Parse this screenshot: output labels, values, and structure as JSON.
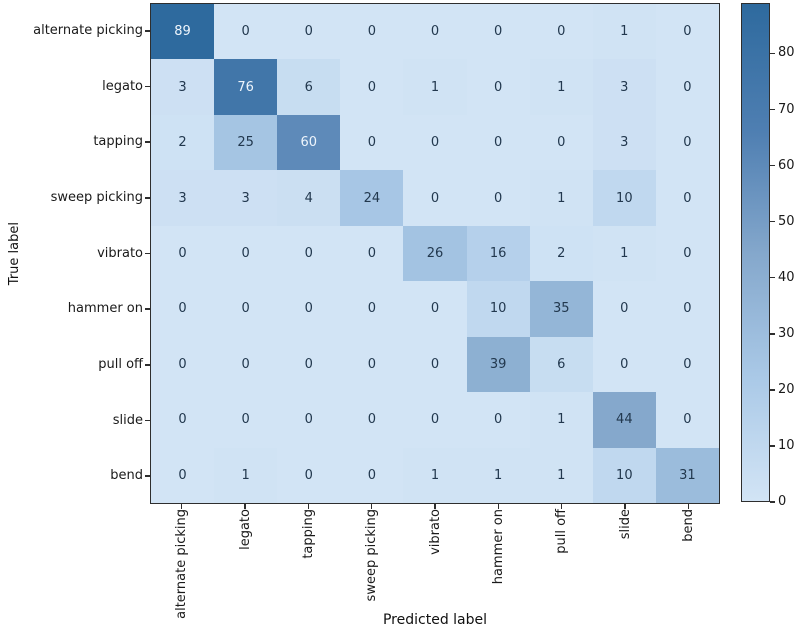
{
  "figure": {
    "background": "#ffffff",
    "spine_color": "#2e2e2e",
    "tick_text_color": "#1a1a1a"
  },
  "chart_data": {
    "type": "heatmap",
    "title": "",
    "xlabel": "Predicted label",
    "ylabel": "True label",
    "x_categories": [
      "alternate picking",
      "legato",
      "tapping",
      "sweep picking",
      "vibrato",
      "hammer on",
      "pull off",
      "slide",
      "bend"
    ],
    "y_categories": [
      "alternate picking",
      "legato",
      "tapping",
      "sweep picking",
      "vibrato",
      "hammer on",
      "pull off",
      "slide",
      "bend"
    ],
    "matrix": [
      [
        89,
        0,
        0,
        0,
        0,
        0,
        0,
        1,
        0
      ],
      [
        3,
        76,
        6,
        0,
        1,
        0,
        1,
        3,
        0
      ],
      [
        2,
        25,
        60,
        0,
        0,
        0,
        0,
        3,
        0
      ],
      [
        3,
        3,
        4,
        24,
        0,
        0,
        1,
        10,
        0
      ],
      [
        0,
        0,
        0,
        0,
        26,
        16,
        2,
        1,
        0
      ],
      [
        0,
        0,
        0,
        0,
        0,
        10,
        35,
        0,
        0
      ],
      [
        0,
        0,
        0,
        0,
        0,
        39,
        6,
        0,
        0
      ],
      [
        0,
        0,
        0,
        0,
        0,
        0,
        1,
        44,
        0
      ],
      [
        0,
        1,
        0,
        0,
        1,
        1,
        1,
        10,
        31
      ]
    ],
    "vmin": 0,
    "vmax": 89,
    "colormap_name": "Blues",
    "colormap_anchors": [
      [
        0,
        "#d2e4f5"
      ],
      [
        22,
        "#aac9e7"
      ],
      [
        44,
        "#85a8cc"
      ],
      [
        66,
        "#4f7fb2"
      ],
      [
        89,
        "#2e6a9e"
      ]
    ],
    "cell_text_dark": "#22384e",
    "cell_text_light": "#eef5fc",
    "text_threshold": 44.5,
    "colorbar_ticks": [
      0,
      10,
      20,
      30,
      40,
      50,
      60,
      70,
      80
    ],
    "legend_position": "right",
    "grid": false
  }
}
